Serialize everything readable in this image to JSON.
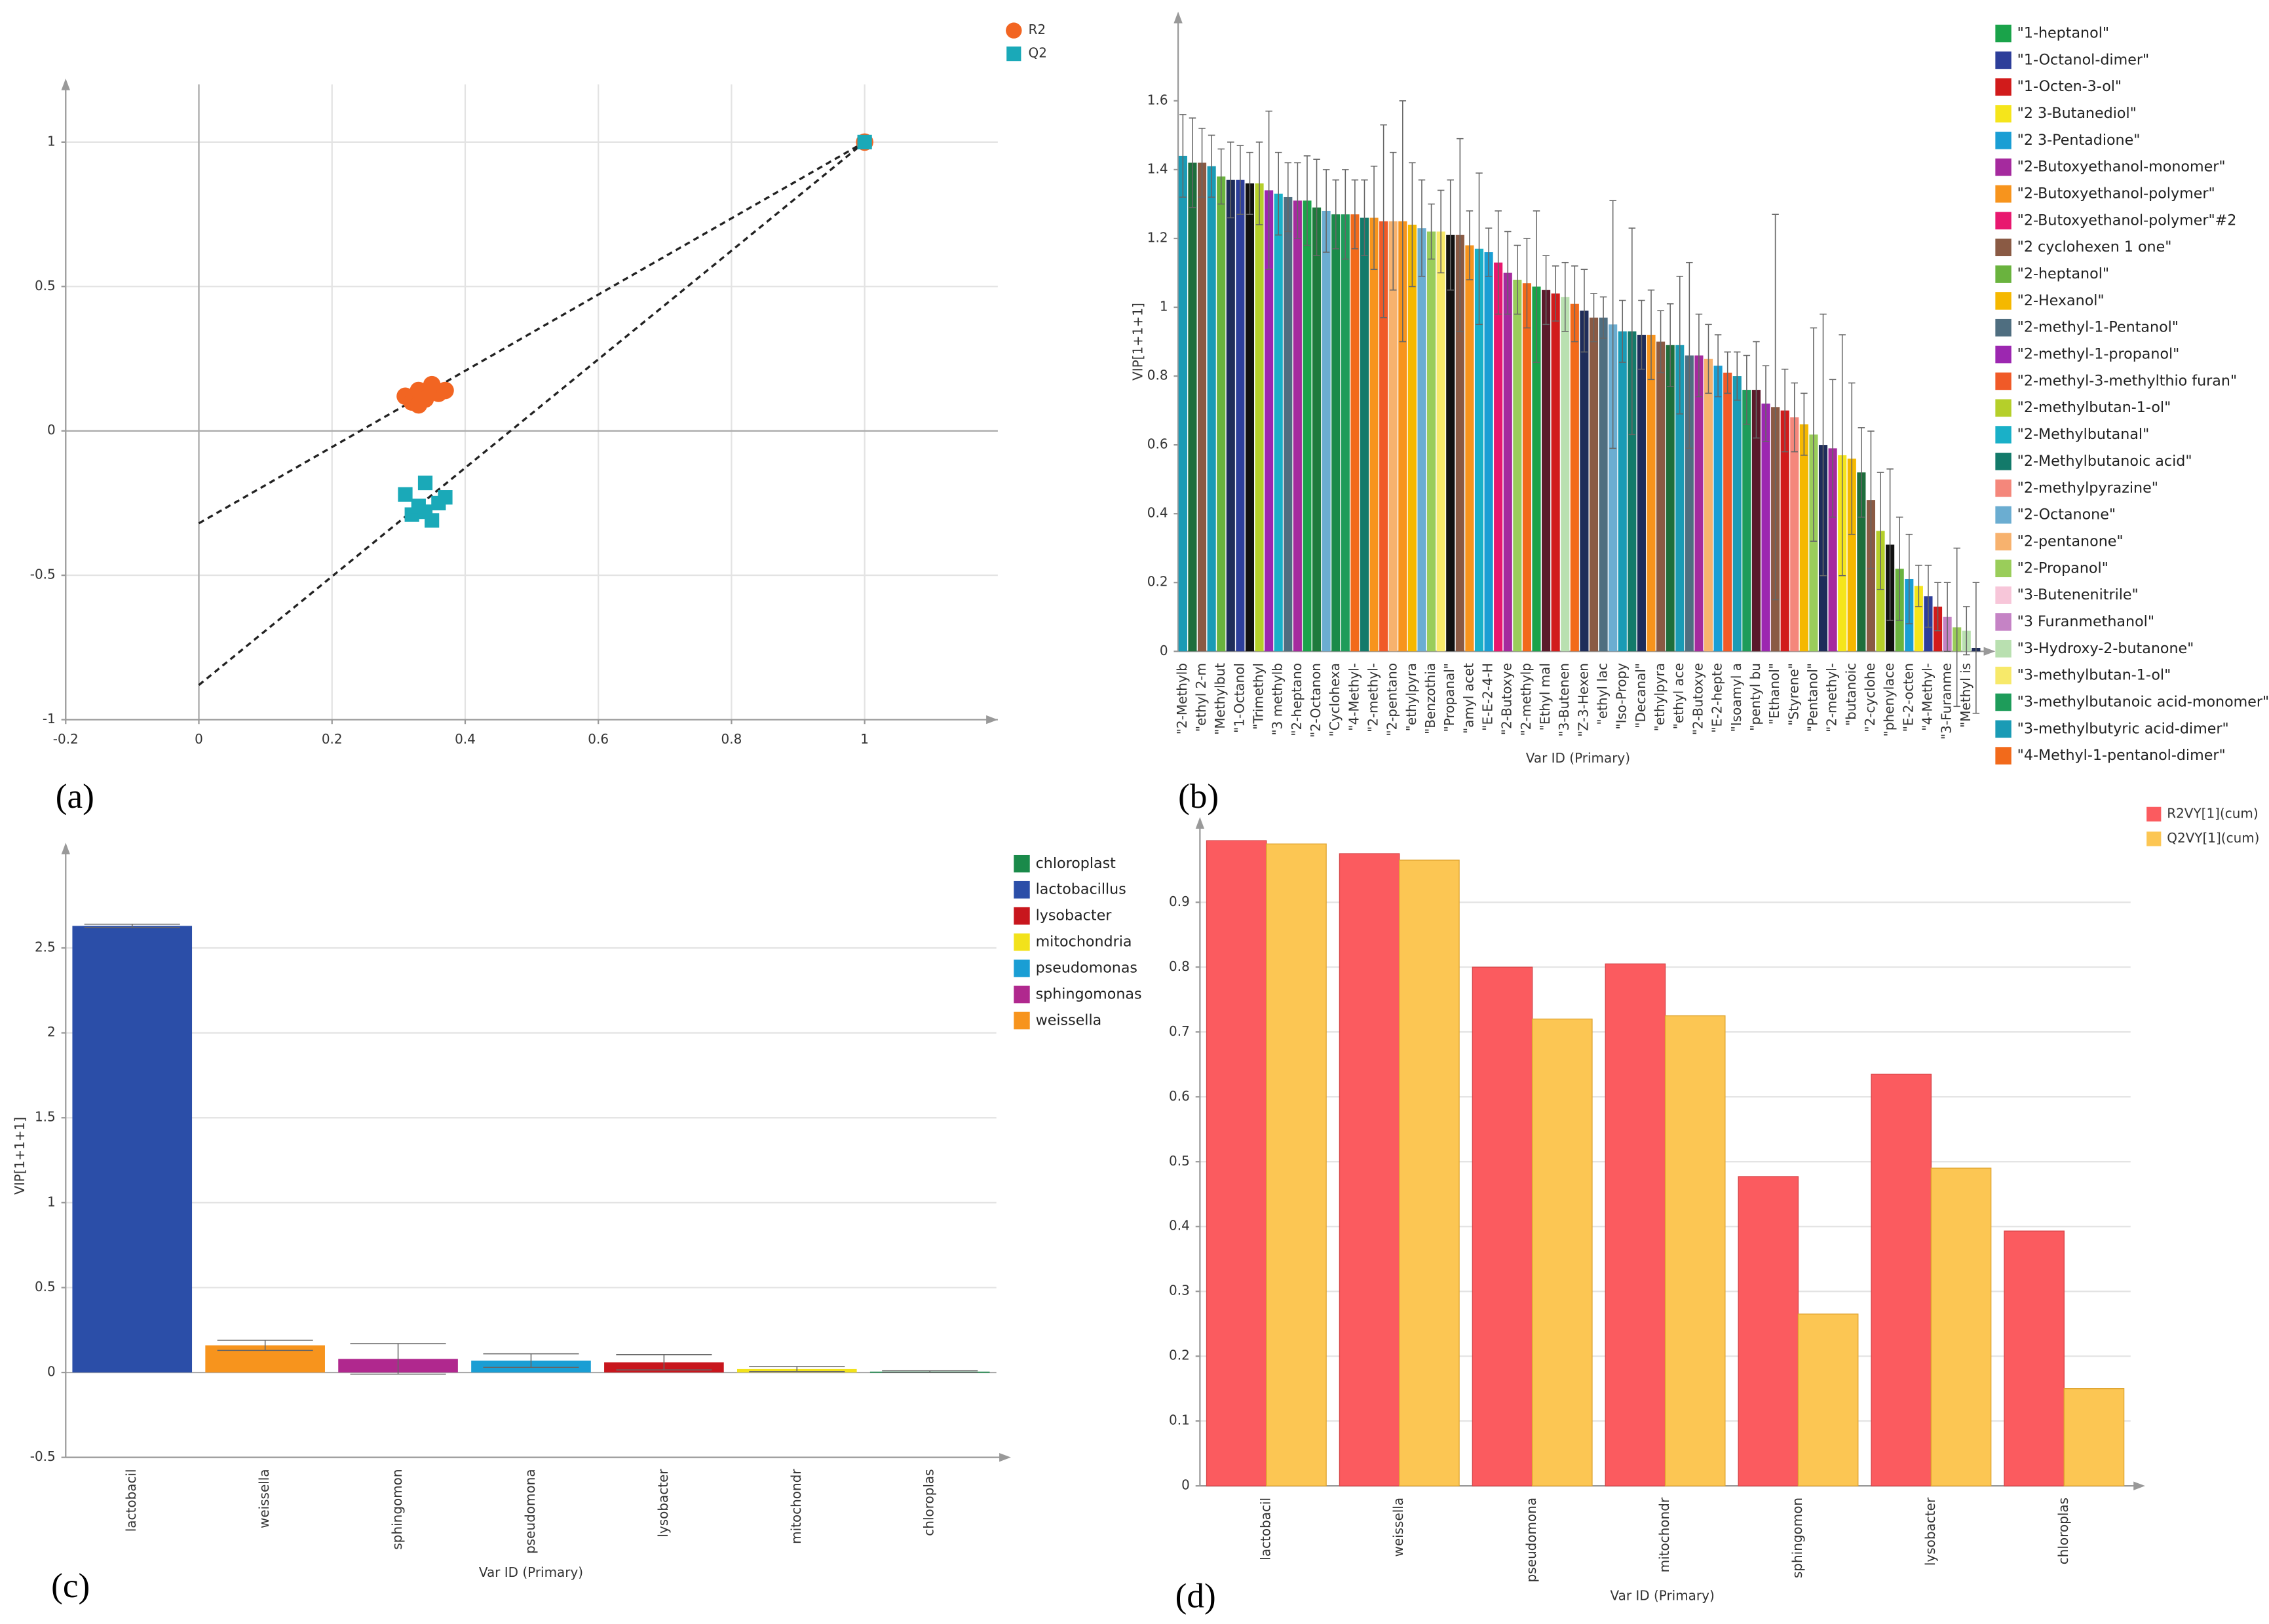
{
  "chart_data": [
    {
      "type": "scatter",
      "panel_label": "(a)",
      "xlim": [
        -0.2,
        1.2
      ],
      "ylim": [
        -1,
        1.2
      ],
      "xticks": [
        -0.2,
        0,
        0.2,
        0.4,
        0.6,
        0.8,
        1
      ],
      "yticks": [
        -1,
        -0.5,
        0,
        0.5,
        1
      ],
      "grid": true,
      "series": [
        {
          "name": "R2",
          "color": "#f26522",
          "marker": "circle",
          "x": [
            0.31,
            0.32,
            0.33,
            0.34,
            0.35,
            0.36,
            0.37,
            0.33,
            1
          ],
          "y": [
            0.12,
            0.1,
            0.14,
            0.11,
            0.16,
            0.13,
            0.14,
            0.09,
            1
          ],
          "fit": {
            "x": [
              0,
              1
            ],
            "y": [
              -0.32,
              1
            ]
          }
        },
        {
          "name": "Q2",
          "color": "#1aa9b8",
          "marker": "square",
          "x": [
            0.31,
            0.32,
            0.33,
            0.34,
            0.35,
            0.36,
            0.37,
            0.34,
            1
          ],
          "y": [
            -0.22,
            -0.29,
            -0.26,
            -0.18,
            -0.31,
            -0.25,
            -0.23,
            -0.28,
            1
          ],
          "fit": {
            "x": [
              0,
              1
            ],
            "y": [
              -0.88,
              1
            ]
          }
        }
      ]
    },
    {
      "type": "bar",
      "panel_label": "(b)",
      "x_label": "Var ID (Primary)",
      "y_label": "VIP[1+1+1]",
      "ylim": [
        0,
        1.8
      ],
      "yticks": [
        0,
        0.2,
        0.4,
        0.6,
        0.8,
        1,
        1.2,
        1.4,
        1.6
      ],
      "grid": false,
      "categories": [
        "\"2-Methylb",
        null,
        "\"ethyl 2-m",
        null,
        "\"Methylbut",
        null,
        "\"1-Octanol",
        null,
        "\"Trimethyl",
        null,
        "\"3 methylb",
        null,
        "\"2-heptano",
        null,
        "\"2-Octanon",
        null,
        "\"Cyclohexa",
        null,
        "\"4-Methyl-",
        null,
        "\"2-methyl-",
        null,
        "\"2-pentano",
        null,
        "\"ethylpyra",
        null,
        "\"Benzothia",
        null,
        "\"Propanal\"",
        null,
        "\"amyl acet",
        null,
        "\"E-E-2-4-H",
        null,
        "\"2-Butoxye",
        null,
        "\"2-methylp",
        null,
        "\"Ethyl mal",
        null,
        "\"3-Butenen",
        null,
        "\"Z-3-Hexen",
        null,
        "\"ethyl lac",
        null,
        "\"Iso-Propy",
        null,
        "\"Decanal\"",
        null,
        "\"ethylpyra",
        null,
        "\"ethyl ace",
        null,
        "\"2-Butoxye",
        null,
        "\"E-2-hepte",
        null,
        "\"Isoamyl a",
        null,
        "\"pentyl bu",
        null,
        "\"Ethanol\"",
        null,
        "\"Styrene\"",
        null,
        "\"Pentanol\"",
        null,
        "\"2-methyl-",
        null,
        "\"butanoic",
        null,
        "\"2-cyclohe",
        null,
        "\"phenylace",
        null,
        "\"E-2-octen",
        null,
        "\"4-Methyl-",
        null,
        "\"3-Furanme",
        null,
        "\"Methyl is",
        null
      ],
      "values": [
        1.44,
        1.42,
        1.42,
        1.41,
        1.38,
        1.37,
        1.37,
        1.36,
        1.36,
        1.34,
        1.33,
        1.32,
        1.31,
        1.31,
        1.29,
        1.28,
        1.27,
        1.27,
        1.27,
        1.26,
        1.26,
        1.25,
        1.25,
        1.25,
        1.24,
        1.23,
        1.22,
        1.22,
        1.21,
        1.21,
        1.18,
        1.17,
        1.16,
        1.13,
        1.1,
        1.08,
        1.07,
        1.06,
        1.05,
        1.04,
        1.03,
        1.01,
        0.99,
        0.97,
        0.97,
        0.95,
        0.93,
        0.93,
        0.92,
        0.92,
        0.9,
        0.89,
        0.89,
        0.86,
        0.86,
        0.85,
        0.83,
        0.81,
        0.8,
        0.76,
        0.76,
        0.72,
        0.71,
        0.7,
        0.68,
        0.66,
        0.63,
        0.6,
        0.59,
        0.57,
        0.56,
        0.52,
        0.44,
        0.35,
        0.31,
        0.24,
        0.21,
        0.19,
        0.16,
        0.13,
        0.1,
        0.07,
        0.06,
        0.01
      ],
      "errors": [
        0.12,
        0.13,
        0.1,
        0.09,
        0.08,
        0.11,
        0.1,
        0.09,
        0.12,
        0.23,
        0.12,
        0.1,
        0.11,
        0.13,
        0.14,
        0.12,
        0.1,
        0.13,
        0.1,
        0.11,
        0.15,
        0.28,
        0.2,
        0.35,
        0.18,
        0.14,
        0.08,
        0.12,
        0.16,
        0.28,
        0.1,
        0.22,
        0.07,
        0.15,
        0.12,
        0.1,
        0.13,
        0.22,
        0.1,
        0.08,
        0.1,
        0.11,
        0.12,
        0.07,
        0.06,
        0.36,
        0.09,
        0.3,
        0.1,
        0.13,
        0.09,
        0.12,
        0.2,
        0.27,
        0.12,
        0.1,
        0.09,
        0.06,
        0.07,
        0.1,
        0.14,
        0.11,
        0.56,
        0.12,
        0.1,
        0.09,
        0.31,
        0.38,
        0.2,
        0.35,
        0.22,
        0.13,
        0.2,
        0.17,
        0.22,
        0.15,
        0.13,
        0.06,
        0.09,
        0.07,
        0.1,
        0.23,
        0.07,
        0.19
      ],
      "colors": [
        "#1a9bb5",
        "#1e6e3c",
        "#8a5a44",
        "#1a9bb5",
        "#6ab33e",
        "#1f2d5a",
        "#2d3e9a",
        "#111111",
        "#b5cf2a",
        "#9c27b0",
        "#1ab0c8",
        "#4f6e80",
        "#a52a9e",
        "#1aa34a",
        "#1e7a3c",
        "#6badd1",
        "#1a8a4a",
        "#1e9c5a",
        "#f26a1b",
        "#137a6a",
        "#f7941d",
        "#f05a28",
        "#f7b26e",
        "#f7941d",
        "#f5b800",
        "#6badd1",
        "#9acd5a",
        "#f7e96a",
        "#111111",
        "#8a5a44",
        "#f7941d",
        "#1ab0c8",
        "#1a9ed4",
        "#e8186f",
        "#a52a9e",
        "#9acd5a",
        "#f26a1b",
        "#1aa34a",
        "#5a1a2a",
        "#d11b1b",
        "#b9e0b0",
        "#f26a1b",
        "#1f2d5a",
        "#8a5a44",
        "#4f6e80",
        "#6badd1",
        "#1a9bb5",
        "#137a6a",
        "#1f2d5a",
        "#f7941d",
        "#8a5a44",
        "#1e6e3c",
        "#1a9bb5",
        "#4f6e80",
        "#a52a9e",
        "#f7b26e",
        "#1a9ed4",
        "#f05a28",
        "#1a9bb5",
        "#1e9c5a",
        "#5a1a2a",
        "#9c27b0",
        "#8a5a44",
        "#d11b1b",
        "#f4877b",
        "#f5b800",
        "#9acd5a",
        "#1f2d5a",
        "#a52a9e",
        "#f5e51b",
        "#f5b800",
        "#1e6e3c",
        "#8a5a44",
        "#b5cf2a",
        "#111111",
        "#6ab33e",
        "#1a9ed4",
        "#f5e51b",
        "#2d3e9a",
        "#d11b1b",
        "#c583c5",
        "#9acd5a",
        "#b9e0b0",
        "#1f2d5a"
      ],
      "legend": [
        {
          "name": "\"1-heptanol\"",
          "color": "#1aa34a"
        },
        {
          "name": "\"1-Octanol-dimer\"",
          "color": "#2d3e9a"
        },
        {
          "name": "\"1-Octen-3-ol\"",
          "color": "#d11b1b"
        },
        {
          "name": "\"2 3-Butanediol\"",
          "color": "#f5e51b"
        },
        {
          "name": "\"2 3-Pentadione\"",
          "color": "#1a9ed4"
        },
        {
          "name": "\"2-Butoxyethanol-monomer\"",
          "color": "#a52a9e"
        },
        {
          "name": "\"2-Butoxyethanol-polymer\"",
          "color": "#f7941d"
        },
        {
          "name": "\"2-Butoxyethanol-polymer\"#2",
          "color": "#e8186f"
        },
        {
          "name": "\"2 cyclohexen 1 one\"",
          "color": "#8a5a44"
        },
        {
          "name": "\"2-heptanol\"",
          "color": "#6ab33e"
        },
        {
          "name": "\"2-Hexanol\"",
          "color": "#f5b800"
        },
        {
          "name": "\"2-methyl-1-Pentanol\"",
          "color": "#4f6e80"
        },
        {
          "name": "\"2-methyl-1-propanol\"",
          "color": "#9c27b0"
        },
        {
          "name": "\"2-methyl-3-methylthio furan\"",
          "color": "#f05a28"
        },
        {
          "name": "\"2-methylbutan-1-ol\"",
          "color": "#b5cf2a"
        },
        {
          "name": "\"2-Methylbutanal\"",
          "color": "#1ab0c8"
        },
        {
          "name": "\"2-Methylbutanoic acid\"",
          "color": "#137a6a"
        },
        {
          "name": "\"2-methylpyrazine\"",
          "color": "#f4877b"
        },
        {
          "name": "\"2-Octanone\"",
          "color": "#6badd1"
        },
        {
          "name": "\"2-pentanone\"",
          "color": "#f7b26e"
        },
        {
          "name": "\"2-Propanol\"",
          "color": "#9acd5a"
        },
        {
          "name": "\"3-Butenenitrile\"",
          "color": "#f7c6d9"
        },
        {
          "name": "\"3 Furanmethanol\"",
          "color": "#c583c5"
        },
        {
          "name": "\"3-Hydroxy-2-butanone\"",
          "color": "#b9e0b0"
        },
        {
          "name": "\"3-methylbutan-1-ol\"",
          "color": "#f7e96a"
        },
        {
          "name": "\"3-methylbutanoic acid-monomer\"",
          "color": "#1e9c5a"
        },
        {
          "name": "\"3-methylbutyric acid-dimer\"",
          "color": "#1a9bb5"
        },
        {
          "name": "\"4-Methyl-1-pentanol-dimer\"",
          "color": "#f26a1b"
        }
      ]
    },
    {
      "type": "bar",
      "panel_label": "(c)",
      "x_label": "Var ID (Primary)",
      "y_label": "VIP[1+1+1]",
      "ylim": [
        -0.5,
        3
      ],
      "yticks": [
        -0.5,
        0,
        0.5,
        1,
        1.5,
        2,
        2.5
      ],
      "grid": true,
      "categories": [
        "lactobacil",
        "weissella",
        "sphingomon",
        "pseudomona",
        "lysobacter",
        "mitochondr",
        "chloroplas"
      ],
      "values": [
        2.63,
        0.16,
        0.08,
        0.07,
        0.06,
        0.02,
        0.005
      ],
      "errors": [
        0.01,
        0.03,
        0.09,
        0.04,
        0.045,
        0.015,
        0.005
      ],
      "colors": [
        "#2b4ea8",
        "#f7941d",
        "#b0288e",
        "#1a9ed4",
        "#c8161d",
        "#f2e21b",
        "#1a8a4a"
      ],
      "legend": [
        {
          "name": "chloroplast",
          "color": "#1a8a4a"
        },
        {
          "name": "lactobacillus",
          "color": "#2b4ea8"
        },
        {
          "name": "lysobacter",
          "color": "#c8161d"
        },
        {
          "name": "mitochondria",
          "color": "#f2e21b"
        },
        {
          "name": "pseudomonas",
          "color": "#1a9ed4"
        },
        {
          "name": "sphingomonas",
          "color": "#b0288e"
        },
        {
          "name": "weissella",
          "color": "#f7941d"
        }
      ]
    },
    {
      "type": "bar",
      "panel_label": "(d)",
      "x_label": "Var ID (Primary)",
      "ylim": [
        0,
        1
      ],
      "yticks": [
        0,
        0.1,
        0.2,
        0.3,
        0.4,
        0.5,
        0.6,
        0.7,
        0.8,
        0.9
      ],
      "grid": true,
      "categories": [
        "lactobacil",
        "weissella",
        "pseudomona",
        "mitochondr",
        "sphingomon",
        "lysobacter",
        "chloroplas"
      ],
      "series": [
        {
          "name": "R2VY[1](cum)",
          "color": "#fb5b5f",
          "values": [
            0.995,
            0.975,
            0.8,
            0.805,
            0.477,
            0.635,
            0.393
          ]
        },
        {
          "name": "Q2VY[1](cum)",
          "color": "#fcc653",
          "values": [
            0.99,
            0.965,
            0.72,
            0.725,
            0.265,
            0.49,
            0.15
          ]
        }
      ]
    }
  ]
}
